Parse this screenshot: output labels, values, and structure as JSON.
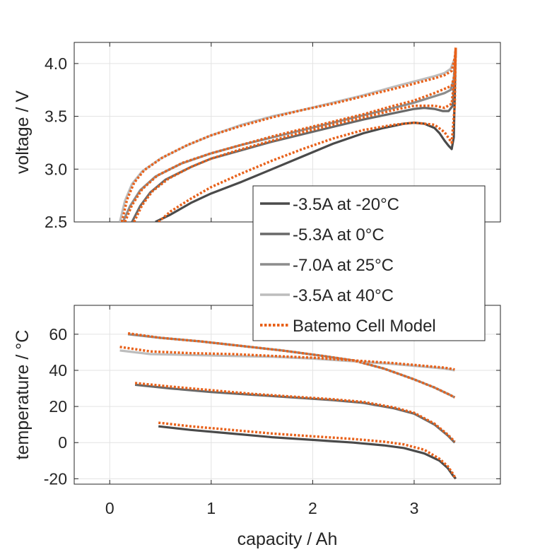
{
  "chart_data": [
    {
      "type": "line",
      "id": "voltage",
      "ylabel": "voltage / V",
      "xlim": [
        -0.35,
        3.85
      ],
      "ylim": [
        2.5,
        4.2
      ],
      "xticks": [
        0,
        1,
        2,
        3
      ],
      "yticks": [
        2.5,
        3.0,
        3.5,
        4.0
      ],
      "ytick_labels": [
        "2.5",
        "3.0",
        "3.5",
        "4.0"
      ],
      "grid": true,
      "series": [
        {
          "name": "-3.5A at -20°C",
          "color": "#4a4a4a",
          "x": [
            0.45,
            0.6,
            0.8,
            1.0,
            1.3,
            1.6,
            1.9,
            2.2,
            2.5,
            2.7,
            2.9,
            3.0,
            3.1,
            3.2,
            3.25,
            3.3,
            3.34,
            3.37,
            3.39,
            3.4,
            3.41
          ],
          "y": [
            2.5,
            2.57,
            2.68,
            2.77,
            2.88,
            3.0,
            3.12,
            3.24,
            3.34,
            3.39,
            3.43,
            3.44,
            3.43,
            3.39,
            3.34,
            3.27,
            3.22,
            3.19,
            3.3,
            3.7,
            4.15
          ]
        },
        {
          "name": "-5.3A at 0°C",
          "color": "#696969",
          "x": [
            0.22,
            0.3,
            0.4,
            0.55,
            0.8,
            1.0,
            1.3,
            1.6,
            1.9,
            2.2,
            2.5,
            2.8,
            3.0,
            3.1,
            3.2,
            3.28,
            3.34,
            3.38,
            3.4,
            3.41
          ],
          "y": [
            2.5,
            2.65,
            2.78,
            2.9,
            3.02,
            3.1,
            3.18,
            3.26,
            3.33,
            3.4,
            3.47,
            3.53,
            3.57,
            3.58,
            3.57,
            3.55,
            3.55,
            3.6,
            3.9,
            4.15
          ]
        },
        {
          "name": "-7.0A at 25°C",
          "color": "#8c8c8c",
          "x": [
            0.13,
            0.2,
            0.3,
            0.45,
            0.7,
            1.0,
            1.3,
            1.6,
            1.9,
            2.2,
            2.5,
            2.8,
            3.0,
            3.2,
            3.3,
            3.36,
            3.39,
            3.41
          ],
          "y": [
            2.5,
            2.65,
            2.8,
            2.93,
            3.05,
            3.15,
            3.23,
            3.3,
            3.37,
            3.44,
            3.51,
            3.58,
            3.63,
            3.69,
            3.72,
            3.75,
            3.85,
            4.15
          ]
        },
        {
          "name": "-3.5A at 40°C",
          "color": "#bdbdbd",
          "x": [
            0.1,
            0.15,
            0.22,
            0.32,
            0.5,
            0.75,
            1.0,
            1.3,
            1.6,
            1.9,
            2.2,
            2.5,
            2.8,
            3.0,
            3.2,
            3.3,
            3.36,
            3.4,
            3.41
          ],
          "y": [
            2.5,
            2.7,
            2.86,
            2.98,
            3.1,
            3.22,
            3.32,
            3.42,
            3.5,
            3.56,
            3.63,
            3.7,
            3.78,
            3.83,
            3.88,
            3.91,
            3.95,
            4.05,
            4.15
          ]
        },
        {
          "name": "Batemo Cell Model",
          "color": "#e8611a",
          "dashed": true,
          "x": [
            0.48,
            0.6,
            0.8,
            1.0,
            1.3,
            1.6,
            1.9,
            2.2,
            2.5,
            2.8,
            3.0,
            3.2,
            3.3,
            3.37,
            3.4,
            3.41
          ],
          "y": [
            2.5,
            2.6,
            2.72,
            2.83,
            2.96,
            3.08,
            3.19,
            3.29,
            3.37,
            3.42,
            3.44,
            3.42,
            3.35,
            3.25,
            3.6,
            4.15
          ]
        },
        {
          "name": "Batemo Cell Model",
          "color": "#e8611a",
          "dashed": true,
          "x": [
            0.24,
            0.32,
            0.42,
            0.58,
            0.8,
            1.0,
            1.3,
            1.6,
            1.9,
            2.2,
            2.5,
            2.8,
            3.0,
            3.2,
            3.3,
            3.37,
            3.4,
            3.41
          ],
          "y": [
            2.5,
            2.66,
            2.79,
            2.91,
            3.02,
            3.1,
            3.19,
            3.27,
            3.35,
            3.42,
            3.49,
            3.56,
            3.6,
            3.6,
            3.58,
            3.62,
            3.9,
            4.15
          ]
        },
        {
          "name": "Batemo Cell Model",
          "color": "#e8611a",
          "dashed": true,
          "x": [
            0.15,
            0.22,
            0.32,
            0.47,
            0.72,
            1.0,
            1.3,
            1.6,
            1.9,
            2.2,
            2.5,
            2.8,
            3.0,
            3.2,
            3.3,
            3.37,
            3.4,
            3.41
          ],
          "y": [
            2.5,
            2.66,
            2.81,
            2.94,
            3.06,
            3.15,
            3.23,
            3.31,
            3.38,
            3.45,
            3.52,
            3.6,
            3.65,
            3.72,
            3.76,
            3.79,
            3.9,
            4.15
          ]
        },
        {
          "name": "Batemo Cell Model",
          "color": "#e8611a",
          "dashed": true,
          "x": [
            0.12,
            0.17,
            0.24,
            0.34,
            0.52,
            0.77,
            1.0,
            1.3,
            1.6,
            1.9,
            2.2,
            2.5,
            2.8,
            3.0,
            3.2,
            3.3,
            3.37,
            3.4,
            3.41
          ],
          "y": [
            2.5,
            2.71,
            2.87,
            2.99,
            3.11,
            3.23,
            3.32,
            3.41,
            3.49,
            3.56,
            3.62,
            3.69,
            3.76,
            3.81,
            3.86,
            3.89,
            3.93,
            4.05,
            4.15
          ]
        }
      ]
    },
    {
      "type": "line",
      "id": "temperature",
      "xlabel": "capacity / Ah",
      "ylabel": "temperature / °C",
      "xlim": [
        -0.35,
        3.85
      ],
      "ylim": [
        -23,
        76
      ],
      "xticks": [
        0,
        1,
        2,
        3
      ],
      "xtick_labels": [
        "0",
        "1",
        "2",
        "3"
      ],
      "yticks": [
        -20,
        0,
        20,
        40,
        60
      ],
      "ytick_labels": [
        "-20",
        "0",
        "20",
        "40",
        "60"
      ],
      "grid": true,
      "series": [
        {
          "name": "-3.5A at -20°C",
          "color": "#4a4a4a",
          "x": [
            0.48,
            0.8,
            1.2,
            1.6,
            2.0,
            2.4,
            2.7,
            2.9,
            3.1,
            3.25,
            3.33,
            3.38,
            3.41
          ],
          "y": [
            9,
            7,
            5,
            3,
            1.5,
            0,
            -1.5,
            -3,
            -6,
            -10,
            -14,
            -18,
            -20
          ]
        },
        {
          "name": "-5.3A at 0°C",
          "color": "#696969",
          "x": [
            0.25,
            0.6,
            1.0,
            1.4,
            1.8,
            2.2,
            2.5,
            2.8,
            3.0,
            3.2,
            3.33,
            3.4
          ],
          "y": [
            32,
            30,
            28,
            26.5,
            25,
            23.5,
            22,
            19,
            16,
            10,
            4,
            0
          ]
        },
        {
          "name": "-7.0A at 25°C",
          "color": "#8c8c8c",
          "x": [
            0.18,
            0.5,
            0.9,
            1.3,
            1.7,
            2.1,
            2.4,
            2.7,
            3.0,
            3.2,
            3.35,
            3.4
          ],
          "y": [
            60,
            58,
            56,
            53.5,
            51,
            48,
            45.5,
            41,
            35,
            30.5,
            26.5,
            25
          ]
        },
        {
          "name": "-3.5A at 40°C",
          "color": "#bdbdbd",
          "x": [
            0.1,
            0.4,
            0.8,
            1.2,
            1.6,
            2.0,
            2.4,
            2.8,
            3.1,
            3.3,
            3.4
          ],
          "y": [
            51,
            49,
            48.5,
            48,
            47.5,
            46.5,
            45,
            43.5,
            42,
            41,
            40
          ]
        },
        {
          "name": "Batemo Cell Model",
          "color": "#e8611a",
          "dashed": true,
          "x": [
            0.48,
            0.8,
            1.2,
            1.6,
            2.0,
            2.4,
            2.7,
            2.9,
            3.1,
            3.25,
            3.33,
            3.38,
            3.41
          ],
          "y": [
            11,
            9,
            7,
            5,
            3.5,
            2,
            0.5,
            -1,
            -4,
            -9,
            -13,
            -17,
            -20
          ]
        },
        {
          "name": "Batemo Cell Model",
          "color": "#e8611a",
          "dashed": true,
          "x": [
            0.25,
            0.6,
            1.0,
            1.4,
            1.8,
            2.2,
            2.5,
            2.8,
            3.0,
            3.2,
            3.33,
            3.4
          ],
          "y": [
            33,
            31,
            29,
            27,
            25.5,
            24,
            22.5,
            19.5,
            16.5,
            10.5,
            4.5,
            0.5
          ]
        },
        {
          "name": "Batemo Cell Model",
          "color": "#e8611a",
          "dashed": true,
          "x": [
            0.18,
            0.5,
            0.9,
            1.3,
            1.7,
            2.1,
            2.4,
            2.7,
            3.0,
            3.2,
            3.35,
            3.4
          ],
          "y": [
            60.5,
            58,
            56,
            53.5,
            51,
            48,
            45.5,
            41,
            35,
            30.5,
            26.5,
            25
          ]
        },
        {
          "name": "Batemo Cell Model",
          "color": "#e8611a",
          "dashed": true,
          "x": [
            0.1,
            0.4,
            0.8,
            1.2,
            1.6,
            2.0,
            2.4,
            2.8,
            3.1,
            3.3,
            3.4
          ],
          "y": [
            53,
            50.5,
            49.5,
            49,
            48,
            47,
            45.5,
            44,
            42.5,
            41.5,
            40.5
          ]
        }
      ]
    }
  ],
  "legend": {
    "placement": "center-right",
    "entries": [
      {
        "label": "-3.5A at -20°C",
        "color": "#4a4a4a",
        "dashed": false
      },
      {
        "label": "-5.3A at 0°C",
        "color": "#696969",
        "dashed": false
      },
      {
        "label": "-7.0A at 25°C",
        "color": "#8c8c8c",
        "dashed": false
      },
      {
        "label": "-3.5A at 40°C",
        "color": "#bdbdbd",
        "dashed": false
      },
      {
        "label": "Batemo Cell Model",
        "color": "#e8611a",
        "dashed": true
      }
    ]
  }
}
